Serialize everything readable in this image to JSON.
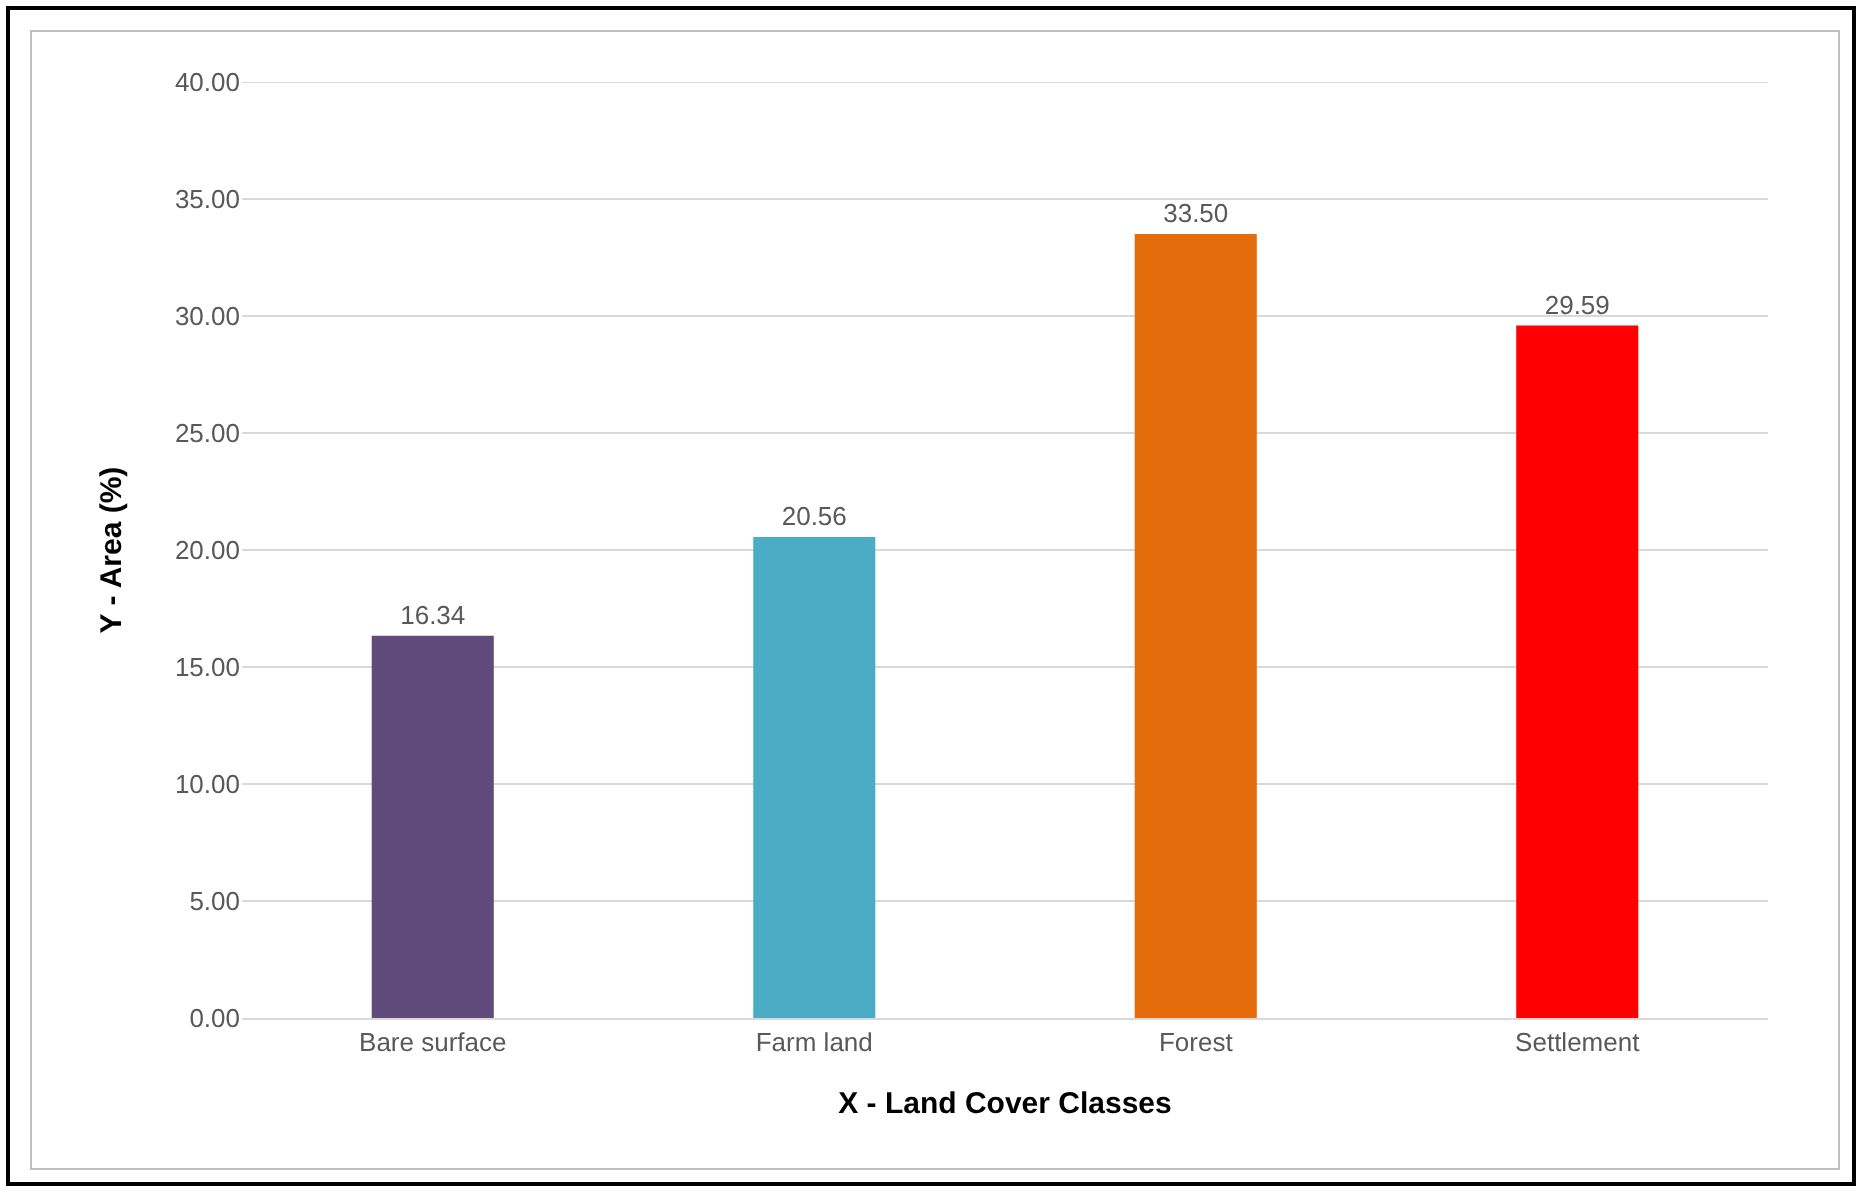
{
  "chart_data": {
    "type": "bar",
    "xlabel": "X - Land Cover Classes",
    "ylabel": "Y - Area (%)",
    "categories": [
      "Bare surface",
      "Farm land",
      "Forest",
      "Settlement"
    ],
    "values": [
      16.34,
      20.56,
      33.5,
      29.59
    ],
    "colors": [
      "#604a7b",
      "#4bacc6",
      "#e46c0a",
      "#ff0000"
    ],
    "value_labels": [
      "16.34",
      "20.56",
      "33.50",
      "29.59"
    ],
    "ylim": [
      0,
      40
    ],
    "yticks": [
      {
        "value": 0,
        "label": "0.00"
      },
      {
        "value": 5,
        "label": "5.00"
      },
      {
        "value": 10,
        "label": "10.00"
      },
      {
        "value": 15,
        "label": "15.00"
      },
      {
        "value": 20,
        "label": "20.00"
      },
      {
        "value": 25,
        "label": "25.00"
      },
      {
        "value": 30,
        "label": "30.00"
      },
      {
        "value": 35,
        "label": "35.00"
      },
      {
        "value": 40,
        "label": "40.00"
      }
    ],
    "grid": "y"
  }
}
